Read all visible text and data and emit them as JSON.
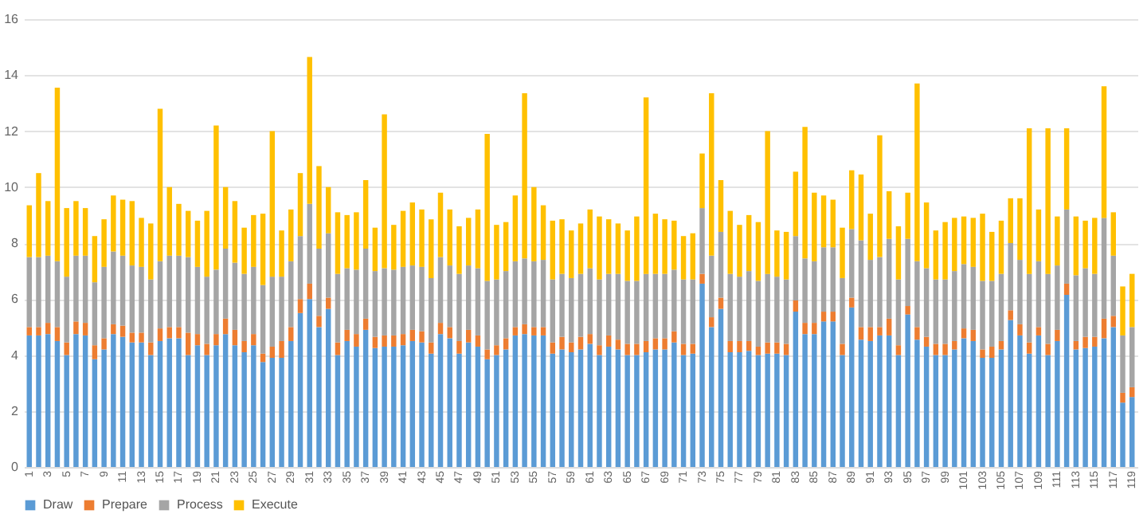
{
  "chart_data": {
    "type": "bar",
    "stacked": true,
    "legend": "bottom",
    "grid": "y",
    "ylim": [
      0,
      16
    ],
    "yticks": [
      0,
      2,
      4,
      6,
      8,
      10,
      12,
      14,
      16
    ],
    "categories": [
      "1",
      null,
      "3",
      null,
      "5",
      null,
      "7",
      null,
      "9",
      null,
      "11",
      null,
      "13",
      null,
      "15",
      null,
      "17",
      null,
      "19",
      null,
      "21",
      null,
      "23",
      null,
      "25",
      null,
      "27",
      null,
      "29",
      null,
      "31",
      null,
      "33",
      null,
      "35",
      null,
      "37",
      null,
      "39",
      null,
      "41",
      null,
      "43",
      null,
      "45",
      null,
      "47",
      null,
      "49",
      null,
      "51",
      null,
      "53",
      null,
      "55",
      null,
      "57",
      null,
      "59",
      null,
      "61",
      null,
      "63",
      null,
      "65",
      null,
      "67",
      null,
      "69",
      null,
      "71",
      null,
      "73",
      null,
      "75",
      null,
      "77",
      null,
      "79",
      null,
      "81",
      null,
      "83",
      null,
      "85",
      null,
      "87",
      null,
      "89",
      null,
      "91",
      null,
      "93",
      null,
      "95",
      null,
      "97",
      null,
      "99",
      null,
      "101",
      null,
      "103",
      null,
      "105",
      null,
      "107",
      null,
      "109",
      null,
      "111",
      null,
      "113",
      null,
      "115",
      null,
      "117",
      null,
      "119"
    ],
    "series": [
      {
        "name": "Draw",
        "color": "#5b9bd5",
        "values": [
          4.7,
          4.7,
          4.75,
          4.5,
          4.0,
          4.75,
          4.7,
          3.85,
          4.2,
          4.75,
          4.65,
          4.45,
          4.45,
          4.0,
          4.5,
          4.6,
          4.6,
          4.0,
          4.35,
          4.0,
          4.35,
          4.75,
          4.35,
          4.1,
          4.35,
          3.75,
          3.9,
          3.9,
          4.5,
          5.5,
          6.0,
          5.0,
          5.65,
          4.0,
          4.5,
          4.3,
          4.9,
          4.25,
          4.3,
          4.3,
          4.35,
          4.5,
          4.45,
          4.05,
          4.75,
          4.6,
          4.05,
          4.45,
          4.3,
          3.85,
          4.0,
          4.2,
          4.7,
          4.75,
          4.7,
          4.7,
          4.05,
          4.2,
          4.1,
          4.2,
          4.4,
          4.0,
          4.3,
          4.2,
          4.0,
          4.0,
          4.1,
          4.2,
          4.2,
          4.45,
          4.0,
          4.05,
          6.55,
          5.0,
          5.65,
          4.1,
          4.1,
          4.15,
          4.0,
          4.05,
          4.05,
          4.0,
          5.55,
          4.75,
          4.75,
          5.2,
          5.2,
          4.0,
          5.7,
          4.55,
          4.5,
          4.7,
          4.7,
          4.0,
          5.45,
          4.55,
          4.3,
          4.0,
          4.0,
          4.2,
          4.6,
          4.5,
          3.9,
          3.9,
          4.2,
          5.25,
          4.7,
          4.05,
          4.7,
          4.0,
          4.5,
          6.15,
          4.2,
          4.25,
          4.3,
          4.6,
          5.0,
          2.3,
          2.5
        ]
      },
      {
        "name": "Prepare",
        "color": "#ed7d31",
        "values": [
          0.3,
          0.3,
          0.4,
          0.5,
          0.45,
          0.45,
          0.45,
          0.5,
          0.4,
          0.35,
          0.4,
          0.35,
          0.35,
          0.45,
          0.45,
          0.4,
          0.4,
          0.8,
          0.4,
          0.4,
          0.4,
          0.55,
          0.55,
          0.4,
          0.4,
          0.3,
          0.4,
          0.6,
          0.5,
          0.5,
          0.55,
          0.4,
          0.4,
          0.45,
          0.4,
          0.45,
          0.4,
          0.4,
          0.4,
          0.4,
          0.4,
          0.4,
          0.4,
          0.4,
          0.4,
          0.4,
          0.45,
          0.45,
          0.4,
          0.35,
          0.35,
          0.4,
          0.3,
          0.35,
          0.3,
          0.3,
          0.4,
          0.45,
          0.35,
          0.45,
          0.35,
          0.35,
          0.4,
          0.35,
          0.4,
          0.4,
          0.4,
          0.4,
          0.4,
          0.4,
          0.4,
          0.35,
          0.35,
          0.35,
          0.4,
          0.4,
          0.4,
          0.35,
          0.3,
          0.4,
          0.4,
          0.4,
          0.4,
          0.4,
          0.4,
          0.35,
          0.35,
          0.4,
          0.35,
          0.45,
          0.5,
          0.3,
          0.6,
          0.35,
          0.3,
          0.45,
          0.35,
          0.4,
          0.4,
          0.3,
          0.35,
          0.4,
          0.3,
          0.4,
          0.3,
          0.35,
          0.4,
          0.4,
          0.3,
          0.4,
          0.4,
          0.4,
          0.3,
          0.4,
          0.35,
          0.7,
          0.4,
          0.35,
          0.35
        ]
      },
      {
        "name": "Process",
        "color": "#a5a5a5",
        "values": [
          2.5,
          2.5,
          2.4,
          2.35,
          2.35,
          2.35,
          2.4,
          2.25,
          2.55,
          2.6,
          2.5,
          2.4,
          2.35,
          2.25,
          2.4,
          2.55,
          2.55,
          2.7,
          2.4,
          2.4,
          2.3,
          2.5,
          2.4,
          2.4,
          2.4,
          2.45,
          2.5,
          2.3,
          2.35,
          2.25,
          2.85,
          2.4,
          2.3,
          2.45,
          2.2,
          2.3,
          2.5,
          2.35,
          2.4,
          2.35,
          2.4,
          2.3,
          2.3,
          2.3,
          2.35,
          2.2,
          2.4,
          2.3,
          2.4,
          2.45,
          2.35,
          2.4,
          2.35,
          2.35,
          2.35,
          2.4,
          2.25,
          2.25,
          2.3,
          2.25,
          2.35,
          2.35,
          2.2,
          2.35,
          2.25,
          2.25,
          2.4,
          2.3,
          2.3,
          2.2,
          2.3,
          2.3,
          2.35,
          2.2,
          2.35,
          2.4,
          2.3,
          2.5,
          2.35,
          2.45,
          2.35,
          2.3,
          2.3,
          2.3,
          2.2,
          2.3,
          2.3,
          2.35,
          2.45,
          3.1,
          2.4,
          2.5,
          2.85,
          2.35,
          2.4,
          2.35,
          2.45,
          2.3,
          2.3,
          2.5,
          2.3,
          2.25,
          2.45,
          2.35,
          2.4,
          2.4,
          2.3,
          2.45,
          2.35,
          2.5,
          2.3,
          2.65,
          2.35,
          2.45,
          2.25,
          3.6,
          2.15,
          2.05,
          2.15
        ]
      },
      {
        "name": "Execute",
        "color": "#ffc000",
        "values": [
          1.85,
          3.0,
          1.95,
          6.2,
          2.45,
          1.95,
          1.7,
          1.65,
          1.7,
          2.0,
          2.0,
          2.3,
          1.75,
          2.0,
          5.45,
          2.45,
          1.85,
          1.65,
          1.65,
          2.35,
          5.15,
          2.2,
          2.2,
          1.65,
          1.85,
          2.55,
          5.2,
          1.65,
          1.85,
          2.25,
          5.25,
          2.95,
          1.65,
          2.2,
          1.9,
          2.05,
          2.45,
          1.55,
          5.5,
          1.6,
          2.0,
          2.25,
          2.05,
          2.1,
          2.3,
          2.0,
          1.7,
          1.7,
          2.1,
          5.25,
          1.95,
          1.75,
          2.35,
          5.9,
          2.65,
          1.95,
          2.1,
          1.95,
          1.7,
          1.8,
          2.1,
          2.25,
          1.95,
          1.8,
          1.8,
          2.3,
          6.3,
          2.15,
          1.95,
          1.75,
          1.55,
          1.65,
          1.95,
          5.8,
          1.85,
          2.25,
          1.85,
          2.0,
          2.1,
          5.1,
          1.65,
          1.7,
          2.3,
          4.7,
          2.45,
          1.85,
          1.7,
          1.8,
          2.1,
          2.35,
          1.65,
          4.35,
          1.7,
          1.9,
          1.65,
          6.35,
          2.35,
          1.75,
          2.05,
          1.9,
          1.7,
          1.75,
          2.4,
          1.75,
          1.9,
          1.6,
          2.2,
          5.2,
          1.85,
          5.2,
          1.75,
          2.9,
          2.1,
          1.7,
          2.0,
          4.7,
          1.55,
          1.75,
          1.9
        ]
      }
    ]
  }
}
